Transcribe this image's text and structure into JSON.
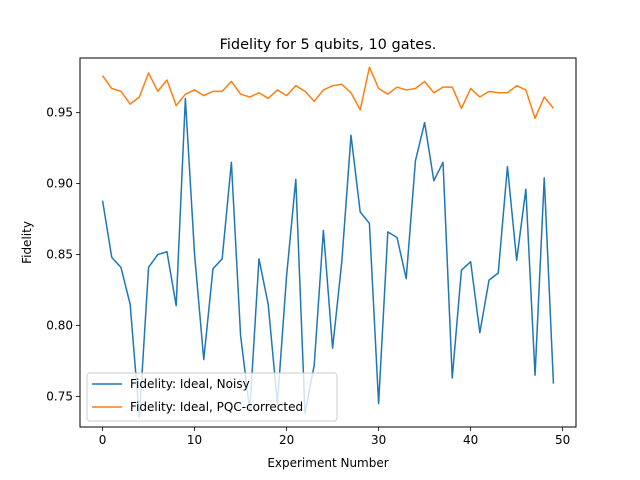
{
  "chart_data": {
    "type": "line",
    "title": "Fidelity for 5 qubits, 10 gates.",
    "xlabel": "Experiment Number",
    "ylabel": "Fidelity",
    "xlim": [
      -2.45,
      51.45
    ],
    "ylim": [
      0.7285,
      0.9885
    ],
    "xticks": [
      0,
      10,
      20,
      30,
      40,
      50
    ],
    "yticks": [
      0.75,
      0.8,
      0.85,
      0.9,
      0.95
    ],
    "ytick_labels": [
      "0.75",
      "0.80",
      "0.85",
      "0.90",
      "0.95"
    ],
    "grid": false,
    "legend_position": "lower-left",
    "x": [
      0,
      1,
      2,
      3,
      4,
      5,
      6,
      7,
      8,
      9,
      10,
      11,
      12,
      13,
      14,
      15,
      16,
      17,
      18,
      19,
      20,
      21,
      22,
      23,
      24,
      25,
      26,
      27,
      28,
      29,
      30,
      31,
      32,
      33,
      34,
      35,
      36,
      37,
      38,
      39,
      40,
      41,
      42,
      43,
      44,
      45,
      46,
      47,
      48,
      49
    ],
    "series": [
      {
        "name": "Fidelity: Ideal, Noisy",
        "color": "#1f77b4",
        "values": [
          0.888,
          0.848,
          0.841,
          0.815,
          0.735,
          0.841,
          0.85,
          0.852,
          0.814,
          0.96,
          0.85,
          0.776,
          0.84,
          0.847,
          0.915,
          0.793,
          0.74,
          0.847,
          0.815,
          0.745,
          0.835,
          0.903,
          0.738,
          0.772,
          0.867,
          0.784,
          0.845,
          0.934,
          0.88,
          0.872,
          0.745,
          0.866,
          0.862,
          0.833,
          0.916,
          0.943,
          0.902,
          0.915,
          0.763,
          0.839,
          0.845,
          0.795,
          0.832,
          0.837,
          0.912,
          0.846,
          0.896,
          0.765,
          0.904,
          0.759
        ]
      },
      {
        "name": "Fidelity: Ideal, PQC-corrected",
        "color": "#ff7f0e",
        "values": [
          0.976,
          0.967,
          0.965,
          0.956,
          0.961,
          0.978,
          0.965,
          0.973,
          0.955,
          0.963,
          0.966,
          0.962,
          0.965,
          0.965,
          0.972,
          0.963,
          0.961,
          0.964,
          0.96,
          0.966,
          0.962,
          0.969,
          0.965,
          0.958,
          0.966,
          0.969,
          0.97,
          0.964,
          0.952,
          0.982,
          0.967,
          0.963,
          0.968,
          0.966,
          0.967,
          0.972,
          0.964,
          0.968,
          0.968,
          0.953,
          0.967,
          0.961,
          0.965,
          0.964,
          0.964,
          0.969,
          0.966,
          0.946,
          0.961,
          0.953
        ]
      }
    ]
  }
}
